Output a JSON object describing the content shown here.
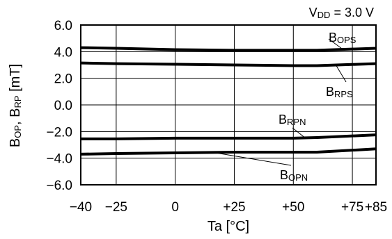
{
  "chart_data": {
    "type": "line",
    "annotation": {
      "main": "V",
      "sub": "DD",
      "rest": " = 3.0 V"
    },
    "xlabel": "Ta [°C]",
    "ylabel": {
      "part1_main": "B",
      "part1_sub": "OP",
      "sep": ", B",
      "part2_sub": "RP",
      "unit": " [mT]"
    },
    "xlim": [
      -40,
      85
    ],
    "ylim": [
      -6,
      6
    ],
    "x_ticks": [
      -40,
      -25,
      0,
      25,
      50,
      75,
      85
    ],
    "x_tick_labels": [
      "−40",
      "−25",
      "0",
      "+25",
      "+50",
      "+75",
      "+85"
    ],
    "y_ticks": [
      6,
      4,
      2,
      0,
      -2,
      -4,
      -6
    ],
    "y_tick_labels": [
      "6.0",
      "4.0",
      "2.0",
      "0.0",
      "−2.0",
      "−4.0",
      "−6.0"
    ],
    "grid": true,
    "series": [
      {
        "name": "BOPS",
        "label_main": "B",
        "label_sub": "OPS",
        "x": [
          -40,
          -25,
          0,
          25,
          50,
          60,
          85
        ],
        "y": [
          4.3,
          4.25,
          4.15,
          4.1,
          4.1,
          4.1,
          4.25
        ]
      },
      {
        "name": "BRPS",
        "label_main": "B",
        "label_sub": "RPS",
        "x": [
          -40,
          -25,
          0,
          25,
          50,
          60,
          85
        ],
        "y": [
          3.15,
          3.1,
          3.05,
          3.0,
          2.95,
          2.95,
          3.1
        ]
      },
      {
        "name": "BRPN",
        "label_main": "B",
        "label_sub": "RPN",
        "x": [
          -40,
          -25,
          0,
          25,
          50,
          60,
          85
        ],
        "y": [
          -2.55,
          -2.55,
          -2.5,
          -2.5,
          -2.5,
          -2.45,
          -2.25
        ]
      },
      {
        "name": "BOPN",
        "label_main": "B",
        "label_sub": "OPN",
        "x": [
          -40,
          -25,
          0,
          25,
          50,
          60,
          85
        ],
        "y": [
          -3.7,
          -3.65,
          -3.6,
          -3.55,
          -3.55,
          -3.55,
          -3.3
        ]
      }
    ]
  }
}
